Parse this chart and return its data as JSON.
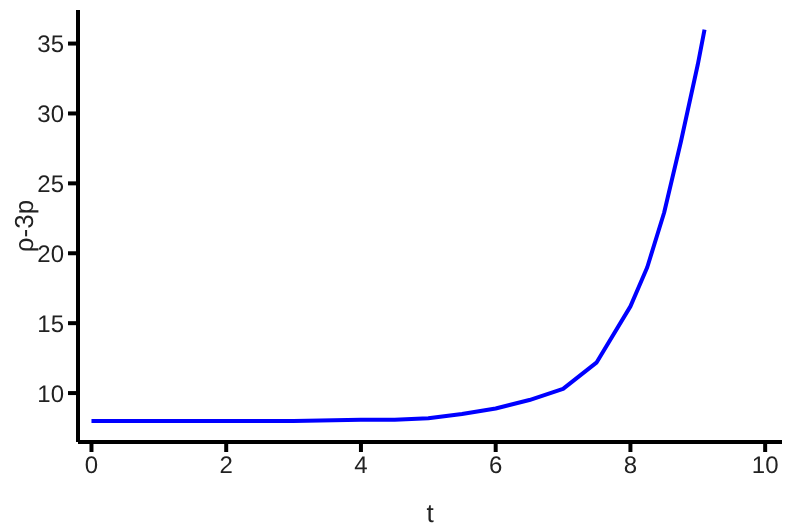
{
  "chart_data": {
    "type": "line",
    "xlabel": "t",
    "ylabel": "ρ-3p",
    "x": [
      0,
      1,
      2,
      3,
      4,
      4.5,
      5,
      5.5,
      6,
      6.5,
      7,
      7.5,
      8,
      8.25,
      8.5,
      8.75,
      9,
      9.1
    ],
    "series": [
      {
        "color": "#0000ff",
        "values": [
          8.0,
          8.0,
          8.0,
          8.0,
          8.1,
          8.1,
          8.2,
          8.5,
          8.9,
          9.5,
          10.3,
          12.2,
          16.2,
          19.0,
          22.9,
          28.0,
          33.5,
          36.0
        ]
      }
    ],
    "xlim": [
      -0.2,
      10.25
    ],
    "ylim": [
      6.5,
      37.4
    ],
    "xticks": [
      0,
      2,
      4,
      6,
      8,
      10
    ],
    "yticks": [
      10,
      15,
      20,
      25,
      30,
      35
    ],
    "marker": "none",
    "line_style": "solid"
  }
}
